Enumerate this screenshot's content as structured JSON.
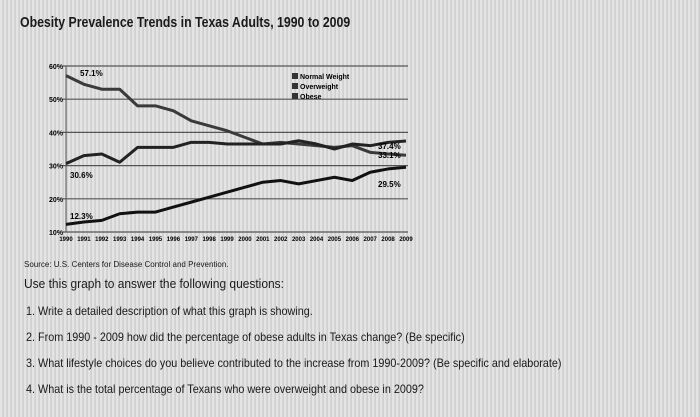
{
  "chart_data": {
    "type": "line",
    "title": "Obesity Prevalence Trends in Texas Adults, 1990 to 2009",
    "x": [
      "1990",
      "1991",
      "1992",
      "1993",
      "1994",
      "1995",
      "1996",
      "1997",
      "1998",
      "1999",
      "2000",
      "2001",
      "2002",
      "2003",
      "2004",
      "2005",
      "2006",
      "2007",
      "2008",
      "2009"
    ],
    "yticks": [
      "10%",
      "20%",
      "30%",
      "40%",
      "50%",
      "60%"
    ],
    "ylim": [
      10,
      60
    ],
    "grid": true,
    "legend_position": "top-right",
    "series": [
      {
        "name": "Normal Weight",
        "color": "#3a3a3a",
        "values": [
          57.1,
          54.5,
          53,
          53,
          48,
          48,
          46.5,
          43.5,
          42,
          40.5,
          38.5,
          36.5,
          37,
          36.5,
          36,
          35.5,
          36,
          34,
          33.5,
          33.1
        ]
      },
      {
        "name": "Overweight",
        "color": "#222222",
        "values": [
          30.6,
          33,
          33.5,
          31,
          35.5,
          35.5,
          35.5,
          37,
          37,
          36.5,
          36.5,
          36.5,
          36.5,
          37.5,
          36.5,
          35,
          36.5,
          36,
          37,
          37.4
        ]
      },
      {
        "name": "Obese",
        "color": "#111111",
        "values": [
          12.3,
          13,
          13.5,
          15.5,
          16,
          16,
          17.5,
          19,
          20.5,
          22,
          23.5,
          25,
          25.5,
          24.5,
          25.5,
          26.5,
          25.5,
          28,
          29,
          29.5
        ]
      }
    ],
    "annotations": [
      "57.1%",
      "30.6%",
      "12.3%",
      "37.4%",
      "33.1%",
      "29.5%"
    ]
  },
  "source": "Source: U.S. Centers for Disease Control and Prevention.",
  "intro": "Use this graph to answer the following questions:",
  "questions": [
    "1. Write a detailed description of what this graph is showing.",
    "2. From 1990 - 2009 how did the percentage of obese adults in Texas change? (Be specific)",
    "3. What lifestyle choices do you believe contributed to the increase from 1990-2009? (Be specific and elaborate)",
    "4. What is the total percentage of Texans who were overweight and obese in 2009?"
  ]
}
